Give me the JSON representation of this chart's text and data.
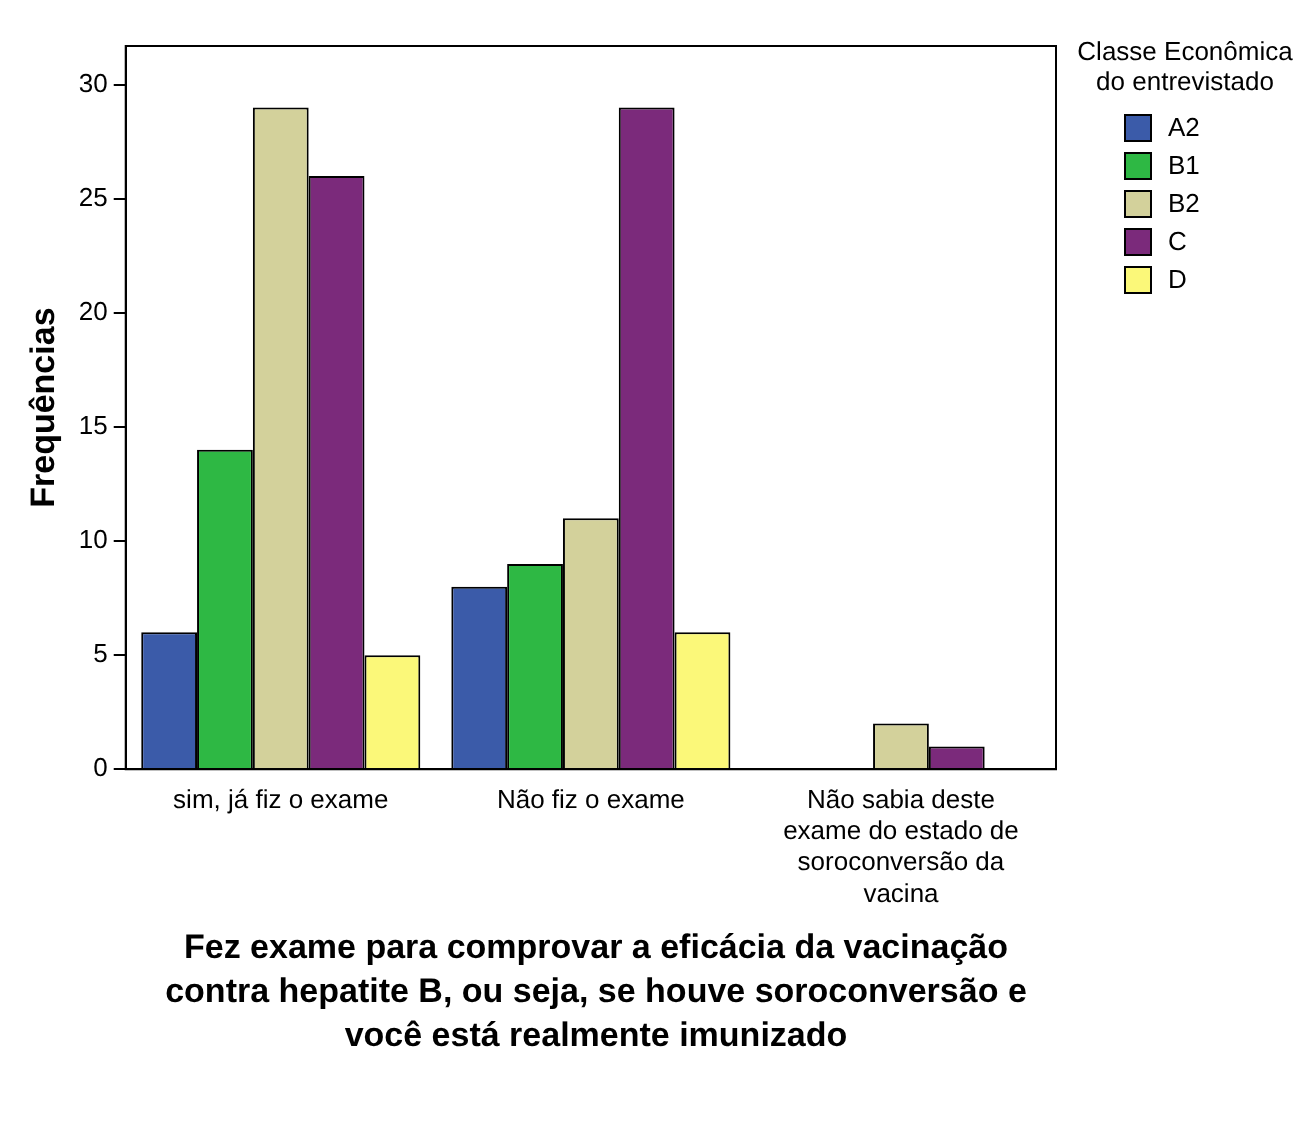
{
  "chart_data": {
    "type": "bar",
    "xlabel": "Fez exame para comprovar a eficácia da vacinação contra hepatite B, ou seja, se houve soroconversão e você está realmente imunizado",
    "ylabel": "Frequências",
    "legend_title": "Classe Econômica do entrevistado",
    "categories": [
      "sim, já fiz o exame",
      "Não fiz o exame",
      "Não sabia deste exame do estado de soroconversão da vacina"
    ],
    "series": [
      {
        "name": "A2",
        "color": "#3b5ba9",
        "values": [
          6,
          8,
          0
        ]
      },
      {
        "name": "B1",
        "color": "#2eb844",
        "values": [
          14,
          9,
          0
        ]
      },
      {
        "name": "B2",
        "color": "#d3d19b",
        "values": [
          29,
          11,
          2
        ]
      },
      {
        "name": "C",
        "color": "#7b2a7b",
        "values": [
          26,
          29,
          1
        ]
      },
      {
        "name": "D",
        "color": "#fbf879",
        "values": [
          5,
          6,
          0
        ]
      }
    ],
    "ylim": [
      0,
      31.7
    ],
    "yticks": [
      0,
      5,
      10,
      15,
      20,
      25,
      30
    ],
    "grid": false,
    "legend": "top right"
  }
}
